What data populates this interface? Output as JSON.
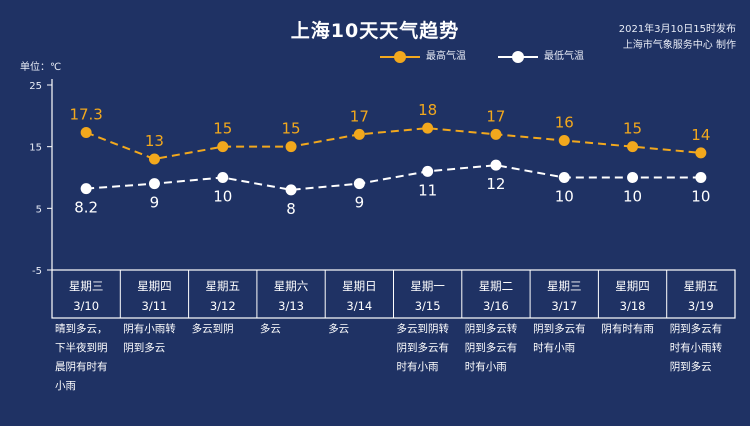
{
  "header": {
    "title": "上海10天天气趋势",
    "publish_time": "2021年3月10日15时发布",
    "publisher": "上海市气象服务中心 制作"
  },
  "unit_label": "单位：℃",
  "colors": {
    "background": "#1f3264",
    "high": "#f2a81d",
    "low": "#ffffff",
    "axis": "#ffffff",
    "grid": "#8b96bd"
  },
  "chart_data": {
    "type": "line",
    "yticks": [
      25,
      15,
      5,
      -5
    ],
    "ylim": [
      -5,
      25
    ],
    "days": [
      {
        "weekday": "星期三",
        "date": "3/10",
        "weather": [
          "晴到多云，",
          "下半夜到明",
          "晨阴有时有",
          "小雨"
        ]
      },
      {
        "weekday": "星期四",
        "date": "3/11",
        "weather": [
          "阴有小雨转",
          "阴到多云"
        ]
      },
      {
        "weekday": "星期五",
        "date": "3/12",
        "weather": [
          "多云到阴"
        ]
      },
      {
        "weekday": "星期六",
        "date": "3/13",
        "weather": [
          "多云"
        ]
      },
      {
        "weekday": "星期日",
        "date": "3/14",
        "weather": [
          "多云"
        ]
      },
      {
        "weekday": "星期一",
        "date": "3/15",
        "weather": [
          "多云到阴转",
          "阴到多云有",
          "时有小雨"
        ]
      },
      {
        "weekday": "星期二",
        "date": "3/16",
        "weather": [
          "阴到多云转",
          "阴到多云有",
          "时有小雨"
        ]
      },
      {
        "weekday": "星期三",
        "date": "3/17",
        "weather": [
          "阴到多云有",
          "时有小雨"
        ]
      },
      {
        "weekday": "星期四",
        "date": "3/18",
        "weather": [
          "阴有时有雨"
        ]
      },
      {
        "weekday": "星期五",
        "date": "3/19",
        "weather": [
          "阴到多云有",
          "时有小雨转",
          "阴到多云"
        ]
      }
    ],
    "series": [
      {
        "name": "最高气温",
        "values": [
          17.3,
          13,
          15,
          15,
          17,
          18,
          17,
          16,
          15,
          14
        ],
        "labels": [
          "17.3",
          "13",
          "15",
          "15",
          "17",
          "18",
          "17",
          "16",
          "15",
          "14"
        ]
      },
      {
        "name": "最低气温",
        "values": [
          8.2,
          9,
          10,
          8,
          9,
          11,
          12,
          10,
          10,
          10
        ],
        "labels": [
          "8.2",
          "9",
          "10",
          "8",
          "9",
          "11",
          "12",
          "10",
          "10",
          "10"
        ]
      }
    ]
  }
}
